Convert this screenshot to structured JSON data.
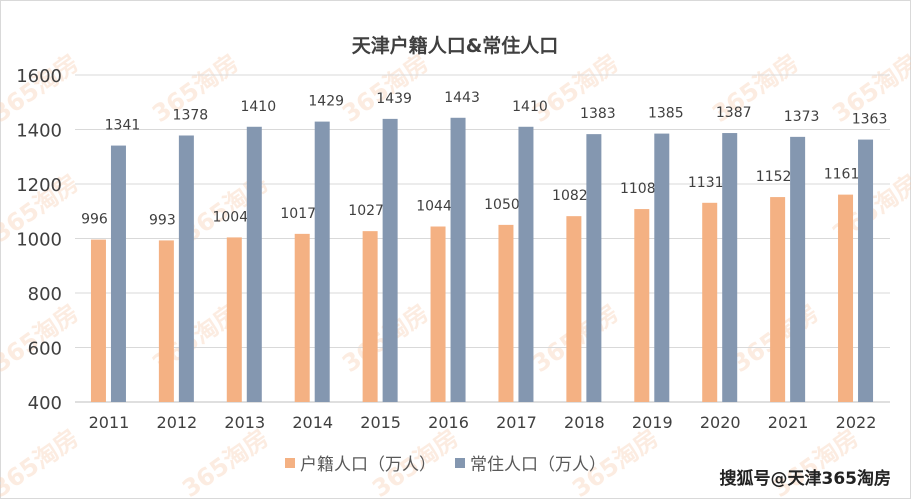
{
  "chart_data": {
    "type": "bar",
    "title": "天津户籍人口&常住人口",
    "categories": [
      "2011",
      "2012",
      "2013",
      "2014",
      "2015",
      "2016",
      "2017",
      "2018",
      "2019",
      "2020",
      "2021",
      "2022"
    ],
    "series": [
      {
        "name": "户籍人口（万人）",
        "color": "#f4b183",
        "values": [
          996,
          993,
          1004,
          1017,
          1027,
          1044,
          1050,
          1082,
          1108,
          1131,
          1152,
          1161
        ]
      },
      {
        "name": "常住人口（万人）",
        "color": "#8497b0",
        "values": [
          1341,
          1378,
          1410,
          1429,
          1439,
          1443,
          1410,
          1383,
          1385,
          1387,
          1373,
          1363
        ]
      }
    ],
    "ylim": [
      400,
      1600
    ],
    "yticks": [
      400,
      600,
      800,
      1000,
      1200,
      1400,
      1600
    ],
    "grid": true,
    "legend": "bottom"
  },
  "watermark": "365淘房",
  "credit": "搜狐号@天津365淘房"
}
